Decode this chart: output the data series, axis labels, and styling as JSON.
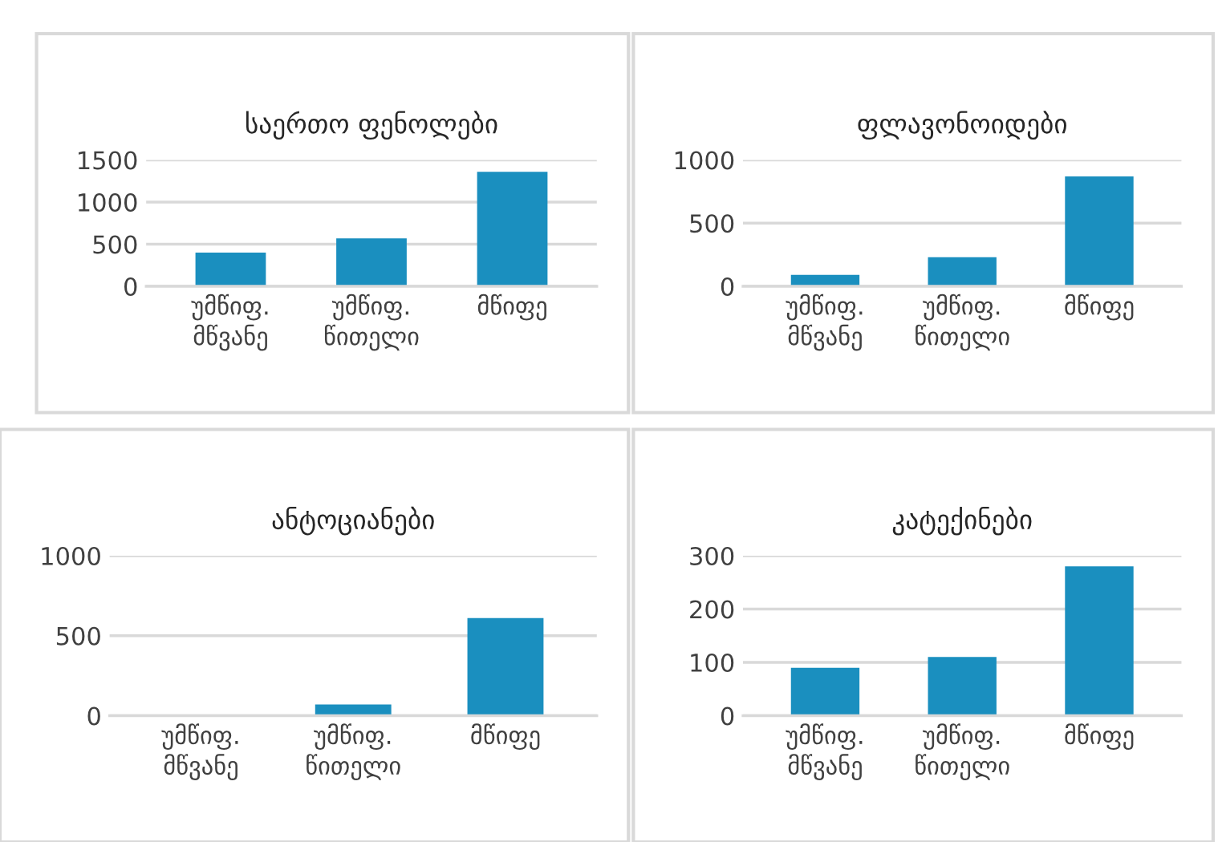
{
  "chart_data": [
    {
      "type": "bar",
      "title": "საერთო ფენოლები",
      "categories": [
        "უმწიფ.\nმწვანე",
        "უმწიფ.\nწითელი",
        "მწიფე"
      ],
      "values": [
        400,
        570,
        1360
      ],
      "color": "#1a8fbf",
      "ylim": [
        0,
        1500
      ],
      "yticks": [
        0,
        500,
        1000,
        1500
      ],
      "grid": "y"
    },
    {
      "type": "bar",
      "title": "ფლავონოიდები",
      "categories": [
        "უმწიფ.\nმწვანე",
        "უმწიფ.\nწითელი",
        "მწიფე"
      ],
      "values": [
        90,
        230,
        870
      ],
      "color": "#1a8fbf",
      "ylim": [
        0,
        1000
      ],
      "yticks": [
        0,
        500,
        1000
      ],
      "grid": "y"
    },
    {
      "type": "bar",
      "title": "ანტოციანები",
      "categories": [
        "უმწიფ.\nმწვანე",
        "უმწიფ.\nწითელი",
        "მწიფე"
      ],
      "values": [
        0,
        70,
        610
      ],
      "color": "#1a8fbf",
      "ylim": [
        0,
        1000
      ],
      "yticks": [
        0,
        500,
        1000
      ],
      "grid": "y"
    },
    {
      "type": "bar",
      "title": "კატექინები",
      "categories": [
        "უმწიფ.\nმწვანე",
        "უმწიფ.\nწითელი",
        "მწიფე"
      ],
      "values": [
        90,
        110,
        280
      ],
      "color": "#1a8fbf",
      "ylim": [
        0,
        300
      ],
      "yticks": [
        0,
        100,
        200,
        300
      ],
      "grid": "y"
    }
  ]
}
